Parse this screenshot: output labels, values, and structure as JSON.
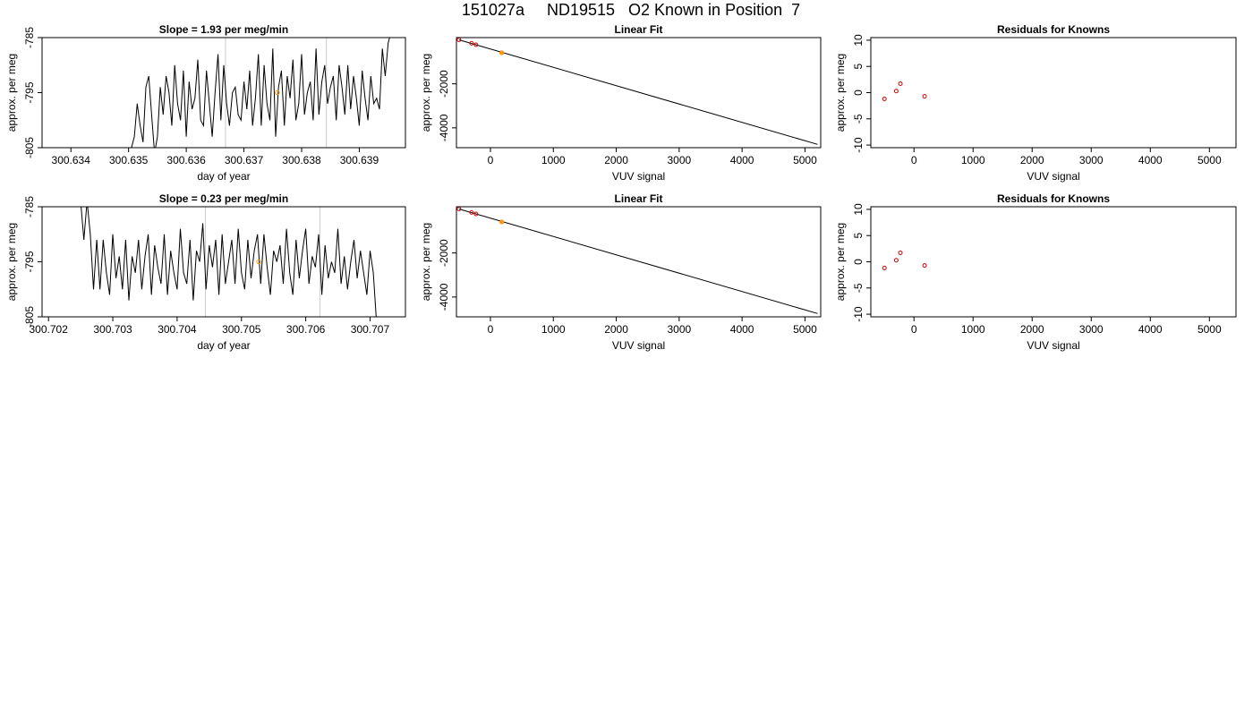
{
  "figure": {
    "title": "151027a     ND19515   O2 Known in Position  7"
  },
  "chart_data": [
    {
      "type": "line",
      "title": "Slope =  1.93  per meg/min",
      "xlabel": "day of year",
      "ylabel": "approx. per meg",
      "xlim": [
        300.6335,
        300.6398
      ],
      "ylim": [
        -805,
        -785
      ],
      "xticks": [
        "300.634",
        "300.635",
        "300.636",
        "300.637",
        "300.638",
        "300.639"
      ],
      "xtick_values": [
        300.634,
        300.635,
        300.636,
        300.637,
        300.638,
        300.639
      ],
      "yticks": [
        "-805",
        "-795",
        "-785"
      ],
      "ytick_values": [
        -805,
        -795,
        -785
      ],
      "vlines": [
        300.63668,
        300.63843
      ],
      "highlight_point": {
        "x": 300.63758,
        "y": -795
      },
      "colors": {
        "line": "#000000",
        "vline": "#cccccc",
        "highlight": "#ff9900"
      },
      "series": [
        {
          "x": [
            300.635,
            300.63505,
            300.6351,
            300.63515,
            300.6352,
            300.63525,
            300.6353,
            300.63535,
            300.6354,
            300.63545,
            300.6355,
            300.63555,
            300.6356,
            300.63565,
            300.6357,
            300.63575,
            300.6358,
            300.63585,
            300.6359,
            300.63595,
            300.636,
            300.63605,
            300.6361,
            300.63615,
            300.6362,
            300.63625,
            300.6363,
            300.63635,
            300.6364,
            300.63645,
            300.6365,
            300.63655,
            300.6366,
            300.63665,
            300.6367,
            300.63675,
            300.6368,
            300.63685,
            300.6369,
            300.63695,
            300.637,
            300.63705,
            300.6371,
            300.63715,
            300.6372,
            300.63725,
            300.6373,
            300.63735,
            300.6374,
            300.63745,
            300.6375,
            300.63755,
            300.6376,
            300.63765,
            300.6377,
            300.63775,
            300.6378,
            300.63785,
            300.6379,
            300.63795,
            300.638,
            300.63805,
            300.6381,
            300.63815,
            300.6382,
            300.63825,
            300.6383,
            300.63835,
            300.6384,
            300.63845,
            300.6385,
            300.63855,
            300.6386,
            300.63865,
            300.6387,
            300.63875,
            300.6388,
            300.63885,
            300.6389,
            300.63895,
            300.639,
            300.63905,
            300.6391,
            300.63915,
            300.6392,
            300.63925,
            300.6393,
            300.63935,
            300.6394,
            300.63945,
            300.6395,
            300.63955
          ],
          "y": [
            -806,
            -805,
            -803,
            -797,
            -801,
            -804,
            -794,
            -792,
            -799,
            -806,
            -803,
            -794,
            -799,
            -792,
            -795,
            -801,
            -790,
            -797,
            -800,
            -791,
            -803,
            -793,
            -798,
            -796,
            -789,
            -800,
            -801,
            -791,
            -797,
            -803,
            -795,
            -788,
            -800,
            -790,
            -797,
            -801,
            -795,
            -794,
            -799,
            -800,
            -793,
            -798,
            -791,
            -801,
            -796,
            -788,
            -801,
            -790,
            -797,
            -800,
            -787,
            -803,
            -794,
            -791,
            -801,
            -792,
            -796,
            -789,
            -800,
            -797,
            -788,
            -799,
            -795,
            -793,
            -800,
            -787,
            -799,
            -793,
            -790,
            -797,
            -794,
            -792,
            -800,
            -790,
            -794,
            -799,
            -790,
            -798,
            -792,
            -796,
            -801,
            -791,
            -796,
            -800,
            -792,
            -797,
            -796,
            -798,
            -787,
            -792,
            -786,
            -784
          ]
        }
      ]
    },
    {
      "type": "line",
      "title": "Linear Fit",
      "xlabel": "VUV signal",
      "ylabel": "approx. per meg",
      "xlim": [
        -540,
        5250
      ],
      "ylim": [
        -4900,
        100
      ],
      "xticks": [
        "0",
        "1000",
        "2000",
        "3000",
        "4000",
        "5000"
      ],
      "xtick_values": [
        0,
        1000,
        2000,
        3000,
        4000,
        5000
      ],
      "yticks": [
        "-4000",
        "-2000"
      ],
      "ytick_values": [
        -4000,
        -2000
      ],
      "colors": {
        "line": "#000000",
        "points": "#cc0000",
        "highlight": "#ff9900"
      },
      "series": [
        {
          "name": "fit",
          "x": [
            -500,
            5200
          ],
          "y": [
            0,
            -4750
          ]
        },
        {
          "name": "knowns",
          "x": [
            -500,
            -300,
            -230,
            180
          ],
          "y": [
            0,
            -160,
            -225,
            -590
          ]
        },
        {
          "name": "sample",
          "x": [
            180
          ],
          "y": [
            -590
          ]
        }
      ]
    },
    {
      "type": "scatter",
      "title": "Residuals for Knowns",
      "xlabel": "VUV signal",
      "ylabel": "approx. per meg",
      "xlim": [
        -730,
        5450
      ],
      "ylim": [
        -10.5,
        10.5
      ],
      "xticks": [
        "0",
        "1000",
        "2000",
        "3000",
        "4000",
        "5000"
      ],
      "xtick_values": [
        0,
        1000,
        2000,
        3000,
        4000,
        5000
      ],
      "yticks": [
        "-10",
        "-5",
        "0",
        "5",
        "10"
      ],
      "ytick_values": [
        -10,
        -5,
        0,
        5,
        10
      ],
      "colors": {
        "points": "#cc0000"
      },
      "series": [
        {
          "x": [
            -500,
            -300,
            -230,
            180
          ],
          "y": [
            -1.2,
            0.3,
            1.7,
            -0.7
          ]
        }
      ]
    },
    {
      "type": "line",
      "title": "Slope =  0.23  per meg/min",
      "xlabel": "day of year",
      "ylabel": "approx. per meg",
      "xlim": [
        300.7019,
        300.70755
      ],
      "ylim": [
        -805,
        -785
      ],
      "xticks": [
        "300.702",
        "300.703",
        "300.704",
        "300.705",
        "300.706",
        "300.707"
      ],
      "xtick_values": [
        300.702,
        300.703,
        300.704,
        300.705,
        300.706,
        300.707
      ],
      "yticks": [
        "-805",
        "-795",
        "-785"
      ],
      "ytick_values": [
        -805,
        -795,
        -785
      ],
      "vlines": [
        300.70444,
        300.70622
      ],
      "highlight_point": {
        "x": 300.70527,
        "y": -795
      },
      "colors": {
        "line": "#000000",
        "vline": "#cccccc",
        "highlight": "#ff9900"
      },
      "series": [
        {
          "x": [
            300.7025,
            300.70255,
            300.7026,
            300.70265,
            300.7027,
            300.70275,
            300.7028,
            300.70285,
            300.7029,
            300.70295,
            300.703,
            300.70305,
            300.7031,
            300.70315,
            300.7032,
            300.70325,
            300.7033,
            300.70335,
            300.7034,
            300.70345,
            300.7035,
            300.70355,
            300.7036,
            300.70365,
            300.7037,
            300.70375,
            300.7038,
            300.70385,
            300.7039,
            300.70395,
            300.704,
            300.70405,
            300.7041,
            300.70415,
            300.7042,
            300.70425,
            300.7043,
            300.70435,
            300.7044,
            300.70445,
            300.7045,
            300.70455,
            300.7046,
            300.70465,
            300.7047,
            300.70475,
            300.7048,
            300.70485,
            300.7049,
            300.70495,
            300.705,
            300.70505,
            300.7051,
            300.70515,
            300.7052,
            300.70525,
            300.7053,
            300.70535,
            300.7054,
            300.70545,
            300.7055,
            300.70555,
            300.7056,
            300.70565,
            300.7057,
            300.70575,
            300.7058,
            300.70585,
            300.7059,
            300.70595,
            300.706,
            300.70605,
            300.7061,
            300.70615,
            300.7062,
            300.70625,
            300.7063,
            300.70635,
            300.7064,
            300.70645,
            300.7065,
            300.70655,
            300.7066,
            300.70665,
            300.7067,
            300.70675,
            300.7068,
            300.70685,
            300.7069,
            300.70695,
            300.707,
            300.70705,
            300.7071
          ],
          "y": [
            -784,
            -791,
            -784,
            -790,
            -800,
            -791,
            -800,
            -791,
            -797,
            -801,
            -790,
            -798,
            -794,
            -800,
            -791,
            -802,
            -794,
            -797,
            -791,
            -800,
            -794,
            -790,
            -801,
            -792,
            -796,
            -799,
            -790,
            -801,
            -793,
            -797,
            -800,
            -789,
            -797,
            -799,
            -791,
            -802,
            -793,
            -795,
            -788,
            -800,
            -792,
            -796,
            -791,
            -801,
            -790,
            -799,
            -795,
            -791,
            -799,
            -789,
            -797,
            -800,
            -791,
            -798,
            -793,
            -790,
            -799,
            -790,
            -796,
            -801,
            -793,
            -795,
            -792,
            -799,
            -789,
            -797,
            -801,
            -791,
            -798,
            -793,
            -789,
            -799,
            -794,
            -796,
            -790,
            -801,
            -792,
            -798,
            -795,
            -797,
            -789,
            -799,
            -794,
            -800,
            -795,
            -791,
            -798,
            -793,
            -797,
            -801,
            -793,
            -797,
            -806
          ]
        }
      ]
    },
    {
      "type": "line",
      "title": "Linear Fit",
      "xlabel": "VUV signal",
      "ylabel": "approx. per meg",
      "xlim": [
        -540,
        5250
      ],
      "ylim": [
        -4900,
        100
      ],
      "xticks": [
        "0",
        "1000",
        "2000",
        "3000",
        "4000",
        "5000"
      ],
      "xtick_values": [
        0,
        1000,
        2000,
        3000,
        4000,
        5000
      ],
      "yticks": [
        "-4000",
        "-2000"
      ],
      "ytick_values": [
        -4000,
        -2000
      ],
      "colors": {
        "line": "#000000",
        "points": "#cc0000",
        "highlight": "#ff9900"
      },
      "series": [
        {
          "name": "fit",
          "x": [
            -500,
            5200
          ],
          "y": [
            0,
            -4750
          ]
        },
        {
          "name": "knowns",
          "x": [
            -500,
            -300,
            -230,
            180
          ],
          "y": [
            0,
            -160,
            -225,
            -590
          ]
        },
        {
          "name": "sample",
          "x": [
            180
          ],
          "y": [
            -590
          ]
        }
      ]
    },
    {
      "type": "scatter",
      "title": "Residuals for Knowns",
      "xlabel": "VUV signal",
      "ylabel": "approx. per meg",
      "xlim": [
        -730,
        5450
      ],
      "ylim": [
        -10.5,
        10.5
      ],
      "xticks": [
        "0",
        "1000",
        "2000",
        "3000",
        "4000",
        "5000"
      ],
      "xtick_values": [
        0,
        1000,
        2000,
        3000,
        4000,
        5000
      ],
      "yticks": [
        "-10",
        "-5",
        "0",
        "5",
        "10"
      ],
      "ytick_values": [
        -10,
        -5,
        0,
        5,
        10
      ],
      "colors": {
        "points": "#cc0000"
      },
      "series": [
        {
          "x": [
            -500,
            -300,
            -230,
            180
          ],
          "y": [
            -1.2,
            0.3,
            1.7,
            -0.7
          ]
        }
      ]
    }
  ]
}
